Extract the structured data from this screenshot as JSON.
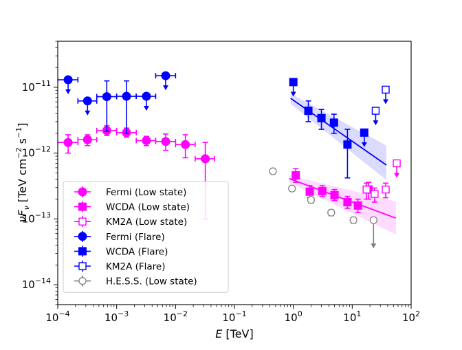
{
  "chart_data": {
    "type": "scatter",
    "title": "",
    "xlabel_italic": "E",
    "xlabel_unit": "[TeV]",
    "ylabel_main": "νF",
    "ylabel_sub": "ν",
    "ylabel_unit_a": "[TeV cm",
    "ylabel_sup1": "−2",
    "ylabel_unit_b": " s",
    "ylabel_sup2": "−1",
    "ylabel_close": "]",
    "xscale": "log",
    "yscale": "log",
    "xlim": [
      0.0001,
      100
    ],
    "ylim": [
      5e-15,
      5e-11
    ],
    "x_ticks": [
      {
        "value": 0.0001,
        "base": "10",
        "exp": "−4"
      },
      {
        "value": 0.001,
        "base": "10",
        "exp": "−3"
      },
      {
        "value": 0.01,
        "base": "10",
        "exp": "−2"
      },
      {
        "value": 0.1,
        "base": "10",
        "exp": "−1"
      },
      {
        "value": 1,
        "base": "10",
        "exp": "0"
      },
      {
        "value": 10,
        "base": "10",
        "exp": "1"
      },
      {
        "value": 100,
        "base": "10",
        "exp": "2"
      }
    ],
    "y_ticks": [
      {
        "value": 1e-11,
        "base": "10",
        "exp": "−11"
      },
      {
        "value": 1e-12,
        "base": "10",
        "exp": "−12"
      },
      {
        "value": 1e-13,
        "base": "10",
        "exp": "−13"
      },
      {
        "value": 1e-14,
        "base": "10",
        "exp": "−14"
      }
    ],
    "legend_position": "lower-left",
    "series": [
      {
        "name": "Fermi (Low state)",
        "color": "#ff00ff",
        "marker": "circle",
        "points": [
          {
            "x": 0.00015,
            "y": 1.45e-12,
            "ylo": 1e-12,
            "yhi": 1.9e-12,
            "xlo": 0.0001,
            "xhi": 0.00022
          },
          {
            "x": 0.00032,
            "y": 1.6e-12,
            "ylo": 1.3e-12,
            "yhi": 1.9e-12,
            "xlo": 0.00022,
            "xhi": 0.00046
          },
          {
            "x": 0.00068,
            "y": 2.2e-12,
            "ylo": 1.85e-12,
            "yhi": 2.6e-12,
            "xlo": 0.00046,
            "xhi": 0.001
          },
          {
            "x": 0.00147,
            "y": 2.05e-12,
            "ylo": 1.75e-12,
            "yhi": 2.4e-12,
            "xlo": 0.001,
            "xhi": 0.00215
          },
          {
            "x": 0.0032,
            "y": 1.55e-12,
            "ylo": 1.3e-12,
            "yhi": 1.8e-12,
            "xlo": 0.00215,
            "xhi": 0.0046
          },
          {
            "x": 0.0068,
            "y": 1.5e-12,
            "ylo": 1.1e-12,
            "yhi": 1.95e-12,
            "xlo": 0.0046,
            "xhi": 0.01
          },
          {
            "x": 0.0147,
            "y": 1.35e-12,
            "ylo": 8.5e-13,
            "yhi": 1.9e-12,
            "xlo": 0.01,
            "xhi": 0.0215
          },
          {
            "x": 0.032,
            "y": 8.2e-13,
            "ylo": 1e-13,
            "yhi": 1.45e-12,
            "xlo": 0.0215,
            "xhi": 0.046
          }
        ]
      },
      {
        "name": "WCDA (Low state)",
        "color": "#ff00ff",
        "marker": "square",
        "points": [
          {
            "x": 1.1,
            "y": 4.6e-13,
            "ylo": 3.6e-13,
            "yhi": 5.8e-13
          },
          {
            "x": 1.9,
            "y": 2.6e-13,
            "ylo": 2.1e-13,
            "yhi": 3.2e-13
          },
          {
            "x": 3.1,
            "y": 2.65e-13,
            "ylo": 2.2e-13,
            "yhi": 3.2e-13
          },
          {
            "x": 5.0,
            "y": 2.3e-13,
            "ylo": 1.9e-13,
            "yhi": 2.8e-13
          },
          {
            "x": 8.3,
            "y": 1.8e-13,
            "ylo": 1.45e-13,
            "yhi": 2.2e-13
          },
          {
            "x": 12.5,
            "y": 1.6e-13,
            "ylo": 1.25e-13,
            "yhi": 2e-13
          },
          {
            "x": 19,
            "y": 2.8e-13,
            "ylo": 2e-13,
            "yhi": 3.6e-13
          }
        ],
        "fit": {
          "x": [
            0.85,
            55
          ],
          "y": [
            4.1e-13,
            1.03e-13
          ],
          "band_lo": [
            3.6e-13,
            5.8e-14
          ],
          "band_hi": [
            4.6e-13,
            1.85e-13
          ]
        }
      },
      {
        "name": "KM2A (Low state)",
        "color": "#ff00ff",
        "marker": "open-square",
        "points": [
          {
            "x": 17.5,
            "y": 2.8e-13,
            "ylo": 2e-13,
            "yhi": 3.5e-13
          },
          {
            "x": 24,
            "y": 2.4e-13,
            "ylo": 1.8e-13,
            "yhi": 2.95e-13
          },
          {
            "x": 37,
            "y": 2.8e-13,
            "ylo": 2.1e-13,
            "yhi": 3.5e-13
          },
          {
            "x": 57,
            "y": 7e-13,
            "upper_limit": true
          }
        ]
      },
      {
        "name": "Fermi (Flare)",
        "color": "#0000ff",
        "marker": "circle",
        "points": [
          {
            "x": 0.00015,
            "y": 1.3e-11,
            "xlo": 0.0001,
            "xhi": 0.00022,
            "upper_limit": true
          },
          {
            "x": 0.00032,
            "y": 6.2e-12,
            "xlo": 0.00022,
            "xhi": 0.00046,
            "upper_limit": true
          },
          {
            "x": 0.00068,
            "y": 7.2e-12,
            "ylo": 2.15e-12,
            "yhi": 1.25e-11,
            "xlo": 0.00046,
            "xhi": 0.001
          },
          {
            "x": 0.00147,
            "y": 7.3e-12,
            "ylo": 2e-12,
            "yhi": 1.25e-11,
            "xlo": 0.001,
            "xhi": 0.00215
          },
          {
            "x": 0.0032,
            "y": 7.3e-12,
            "xlo": 0.00215,
            "xhi": 0.0046,
            "upper_limit": true
          },
          {
            "x": 0.0068,
            "y": 1.5e-11,
            "xlo": 0.0046,
            "xhi": 0.01,
            "upper_limit": true
          }
        ]
      },
      {
        "name": "WCDA (Flare)",
        "color": "#0000ff",
        "marker": "square",
        "points": [
          {
            "x": 1.0,
            "y": 1.2e-11,
            "upper_limit": true
          },
          {
            "x": 1.8,
            "y": 4.4e-12,
            "ylo": 3e-12,
            "yhi": 6.2e-12
          },
          {
            "x": 3.0,
            "y": 3.4e-12,
            "ylo": 2.3e-12,
            "yhi": 4.6e-12
          },
          {
            "x": 4.9,
            "y": 2.9e-12,
            "ylo": 2e-12,
            "yhi": 3.9e-12
          },
          {
            "x": 8.3,
            "y": 1.35e-12,
            "ylo": 4.2e-13,
            "yhi": 2.3e-12
          },
          {
            "x": 16,
            "y": 2.05e-12,
            "upper_limit": true
          }
        ],
        "fit": {
          "x": [
            0.9,
            38
          ],
          "y": [
            6.8e-12,
            6.6e-13
          ],
          "band_lo": [
            5.6e-12,
            3.9e-13
          ],
          "band_hi": [
            8e-12,
            1.3e-12
          ]
        }
      },
      {
        "name": "KM2A (Flare)",
        "color": "#0000ff",
        "marker": "open-square",
        "points": [
          {
            "x": 25,
            "y": 4.4e-12,
            "upper_limit": true
          },
          {
            "x": 37,
            "y": 9.2e-12,
            "upper_limit": true
          }
        ]
      },
      {
        "name": "H.E.S.S. (Low state)",
        "color": "#808080",
        "marker": "open-circle",
        "points": [
          {
            "x": 0.45,
            "y": 5.3e-13,
            "ylo": 4.9e-13,
            "yhi": 5.7e-13
          },
          {
            "x": 0.95,
            "y": 2.9e-13,
            "ylo": 2.65e-13,
            "yhi": 3.15e-13
          },
          {
            "x": 2.0,
            "y": 1.95e-13,
            "ylo": 1.75e-13,
            "yhi": 2.15e-13
          },
          {
            "x": 4.4,
            "y": 1.25e-13,
            "ylo": 1.12e-13,
            "yhi": 1.38e-13
          },
          {
            "x": 10.5,
            "y": 9.6e-14,
            "ylo": 8.6e-14,
            "yhi": 1.06e-13
          },
          {
            "x": 23,
            "y": 9.6e-14,
            "upper_limit": true
          }
        ]
      }
    ]
  }
}
